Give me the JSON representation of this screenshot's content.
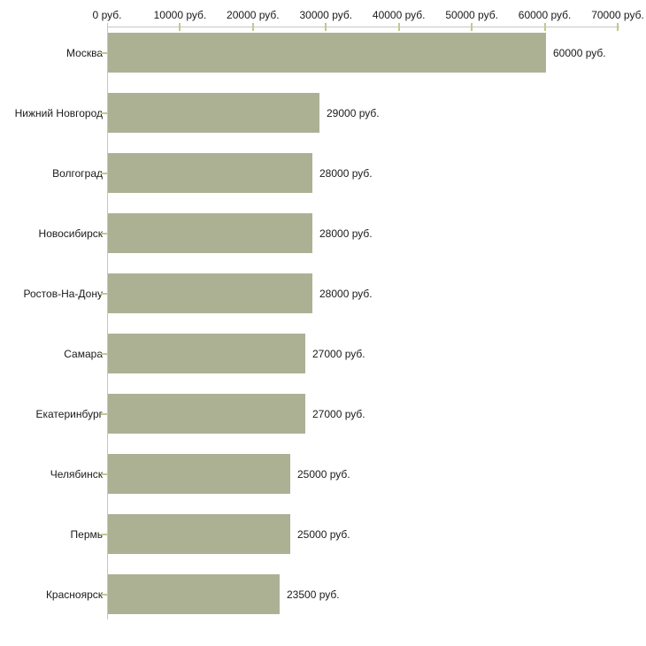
{
  "chart_data": {
    "type": "bar",
    "orientation": "horizontal",
    "title": "",
    "xlabel": "",
    "ylabel": "",
    "categories": [
      "Москва",
      "Нижний Новгород",
      "Волгоград",
      "Новосибирск",
      "Ростов-На-Дону",
      "Самара",
      "Екатеринбург",
      "Челябинск",
      "Пермь",
      "Красноярск"
    ],
    "values": [
      60000,
      29000,
      28000,
      28000,
      28000,
      27000,
      27000,
      25000,
      25000,
      23500
    ],
    "value_labels": [
      "60000 руб.",
      "29000 руб.",
      "28000 руб.",
      "28000 руб.",
      "28000 руб.",
      "27000 руб.",
      "27000 руб.",
      "25000 руб.",
      "25000 руб.",
      "23500 руб."
    ],
    "x_ticks": [
      0,
      10000,
      20000,
      30000,
      40000,
      50000,
      60000,
      70000
    ],
    "x_tick_labels": [
      "0 руб.",
      "10000 руб.",
      "20000 руб.",
      "30000 руб.",
      "40000 руб.",
      "50000 руб.",
      "60000 руб.",
      "70000 руб."
    ],
    "xlim": [
      0,
      70000
    ],
    "grid": "off",
    "legend": "none",
    "colors": {
      "bar": "#acb194",
      "axis_line": "#c6c6c6",
      "tick_mark": "#c6c690",
      "text": "#1a1a1a",
      "background": "#ffffff"
    }
  }
}
